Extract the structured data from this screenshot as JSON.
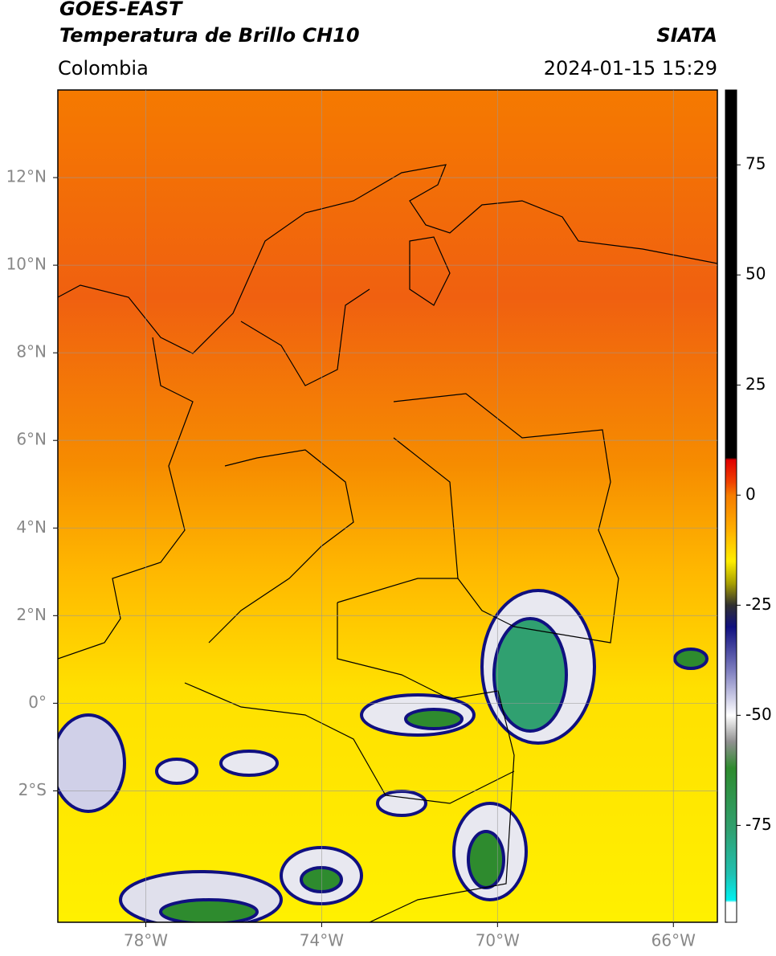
{
  "map": {
    "title": "GOES-EAST",
    "subtitle": "Temperatura de Brillo CH10",
    "region": "Colombia",
    "source": "SIATA",
    "datetime": "2024-01-15 15:29",
    "xlim": [
      -80,
      -65
    ],
    "ylim": [
      -5,
      14
    ],
    "xticks": [
      {
        "value": -78,
        "label": "78°W"
      },
      {
        "value": -74,
        "label": "74°W"
      },
      {
        "value": -70,
        "label": "70°W"
      },
      {
        "value": -66,
        "label": "66°W"
      }
    ],
    "yticks": [
      {
        "value": 12,
        "label": "12°N"
      },
      {
        "value": 10,
        "label": "10°N"
      },
      {
        "value": 8,
        "label": "8°N"
      },
      {
        "value": 6,
        "label": "6°N"
      },
      {
        "value": 4,
        "label": "4°N"
      },
      {
        "value": 2,
        "label": "2°N"
      },
      {
        "value": 0,
        "label": "0°"
      },
      {
        "value": -2,
        "label": "2°S"
      }
    ],
    "grid": true,
    "colorbar": {
      "clim": [
        -97,
        92
      ],
      "ticks": [
        75,
        50,
        25,
        0,
        -25,
        -50,
        -75
      ],
      "stops": [
        {
          "value": 92,
          "color": "#000000"
        },
        {
          "value": 8.5,
          "color": "#000000"
        },
        {
          "value": 8,
          "color": "#e00000"
        },
        {
          "value": 3,
          "color": "#f04000"
        },
        {
          "value": 0,
          "color": "#f57c00"
        },
        {
          "value": -8,
          "color": "#ffb000"
        },
        {
          "value": -15,
          "color": "#ffee00"
        },
        {
          "value": -20,
          "color": "#a8a000"
        },
        {
          "value": -25,
          "color": "#303030"
        },
        {
          "value": -30,
          "color": "#101080"
        },
        {
          "value": -40,
          "color": "#8080c0"
        },
        {
          "value": -50,
          "color": "#ffffff"
        },
        {
          "value": -56,
          "color": "#909090"
        },
        {
          "value": -62,
          "color": "#2e8b2e"
        },
        {
          "value": -76,
          "color": "#30a070"
        },
        {
          "value": -86,
          "color": "#20c0b0"
        },
        {
          "value": -92,
          "color": "#00f0f0"
        },
        {
          "value": -92.5,
          "color": "#ffffff"
        },
        {
          "value": -97,
          "color": "#ffffff"
        }
      ]
    }
  }
}
